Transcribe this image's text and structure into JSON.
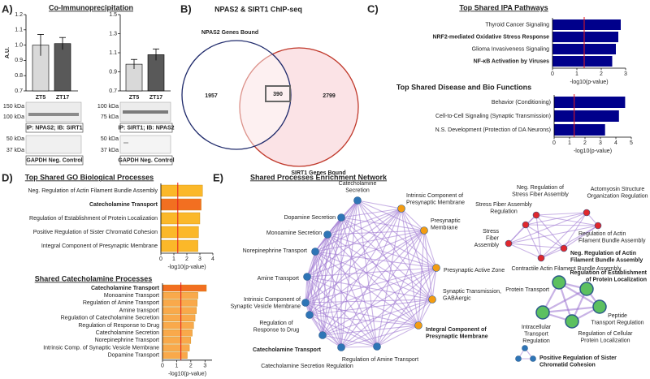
{
  "chart_data": [
    {
      "type": "bar",
      "ylabel": "A.U.",
      "categories": [
        "ZT5",
        "ZT17"
      ],
      "values": [
        1.0,
        1.01
      ],
      "errors": [
        0.07,
        0.04
      ],
      "colors": [
        "#d9d9d9",
        "#595959"
      ],
      "ylim": [
        0.7,
        1.2
      ],
      "yticks": [
        0.7,
        0.8,
        0.9,
        {
          "value": 1,
          "label": "1.0"
        },
        1.1,
        1.2
      ]
    },
    {
      "type": "bar",
      "categories": [
        "ZT5",
        "ZT17"
      ],
      "values": [
        0.98,
        1.08
      ],
      "errors": [
        0.05,
        0.06
      ],
      "colors": [
        "#d9d9d9",
        "#595959"
      ],
      "ylim": [
        0.7,
        1.5
      ],
      "yticks": [
        0.7,
        0.9,
        1.1,
        1.3,
        1.5
      ]
    },
    {
      "type": "barh",
      "title": "Top Shared IPA Pathways",
      "xlabel": "-log10(p-value)",
      "categories": [
        "Thyroid Cancer Signaling",
        "NRF2-mediated Oxidative Stress Response",
        "Glioma Invasiveness Signaling",
        "NF-κB Activation by Viruses"
      ],
      "bold": [
        1,
        3
      ],
      "values": [
        2.8,
        2.7,
        2.6,
        2.45
      ],
      "color": "#00008b",
      "xlim": [
        0,
        3
      ],
      "xticks": [
        0,
        1,
        2,
        3
      ],
      "threshold": 1.3,
      "threshold_color": "#e41a1c"
    },
    {
      "type": "barh",
      "title": "Top Shared Disease and Bio Functions",
      "xlabel": "-log10(p-value)",
      "categories": [
        "Behavior (Conditioning)",
        "Cell-to-Cell Signaling (Synaptic Transmission)",
        "N.S. Development (Protection of DA Neurons)"
      ],
      "bold": [],
      "values": [
        4.6,
        4.2,
        3.3
      ],
      "color": "#00008b",
      "xlim": [
        0,
        5
      ],
      "xticks": [
        0,
        1,
        2,
        3,
        4,
        5
      ],
      "threshold": 1.3,
      "threshold_color": "#e41a1c"
    },
    {
      "type": "barh",
      "title": "Top Shared GO Biological Processes",
      "xlabel": "-log10(p-value)",
      "categories": [
        "Neg. Regulation of Actin Filament Bundle Assembly",
        "Catecholamine Transport",
        "Regulation of Establishment of Protein Localization",
        "Positive Regulation of Sister Chromatid Cohesion",
        "Integral Component of Presynaptic Membrane"
      ],
      "bold": [
        1
      ],
      "values": [
        3.2,
        3.1,
        3.0,
        2.9,
        2.85
      ],
      "bar_colors": [
        "#fbb829",
        "#f26f21",
        "#fbb829",
        "#fbb829",
        "#fbb829"
      ],
      "xlim": [
        0,
        4
      ],
      "xticks": [
        0,
        1,
        2,
        3,
        4
      ],
      "threshold": 1.3,
      "threshold_color": "#e41a1c"
    },
    {
      "type": "barh",
      "title": "Shared Catecholamine Processes",
      "xlabel": "-log10(p-value)",
      "categories": [
        "Catecholamine Transport",
        "Monoamine Transport",
        "Regulation of Amine Transport",
        "Amine transport",
        "Regulation of Catecholamine Secretion",
        "Regulation of Response to Drug",
        "Catecholamine Secretion",
        "Norepinephrine Transport",
        "Intrinsic Comp. of Synaptic Vesicle Membrane",
        "Dopamine Transport"
      ],
      "bold": [
        0
      ],
      "values": [
        3.1,
        2.5,
        2.45,
        2.4,
        2.3,
        2.2,
        2.1,
        2.0,
        1.9,
        1.75
      ],
      "bar_colors": [
        "#f26f21",
        "#f9a94b",
        "#f9a94b",
        "#f9a94b",
        "#f9a94b",
        "#f9a94b",
        "#f9a94b",
        "#f9a94b",
        "#f9a94b",
        "#f9a94b"
      ],
      "xlim": [
        0,
        3.5
      ],
      "xticks": [
        0,
        1,
        2,
        3
      ],
      "threshold": 1.3,
      "threshold_color": "#e41a1c"
    }
  ],
  "panel_a": {
    "label": "A)",
    "title": "Co-Immunoprecipitation",
    "blots": [
      {
        "markers": [
          "150 kDa",
          "100 kDa"
        ],
        "caption": "IP: NPAS2; IB: SIRT1",
        "control_markers": [
          "50 kDa",
          "37 kDa"
        ],
        "control_caption": "GAPDH Neg. Control"
      },
      {
        "markers": [
          "100 kDa",
          "75 kDa"
        ],
        "caption": "IP: SIRT1; IB: NPAS2",
        "control_markers": [
          "50 kDa",
          "37 kDa"
        ],
        "control_caption": "GAPDH Neg. Control"
      }
    ]
  },
  "venn": {
    "label": "B)",
    "title": "NPAS2 & SIRT1 ChIP-seq",
    "sets": [
      {
        "name": "NPAS2 Genes Bound",
        "color": "#1f2a6b"
      },
      {
        "name": "SIRT1 Genes Bound",
        "color": "#c0392b"
      }
    ],
    "counts": [
      1957,
      390,
      2799
    ]
  },
  "panel_labels": {
    "c": "C)",
    "d": "D)"
  },
  "network": {
    "label": "E)",
    "title": "Shared Processes Enrichment Network",
    "edge_color": "#9b72cf",
    "clusters": [
      {
        "nodes": [
          {
            "lines": [
              "Catecholamine",
              "Secretion"
            ],
            "color": "#2e75b6"
          },
          {
            "lines": [
              "Intrinsic Component of",
              "Presynaptic Membrane"
            ],
            "color": "#f39c12"
          },
          {
            "lines": [
              "Presynaptic",
              "Membrane"
            ],
            "color": "#f39c12"
          },
          {
            "lines": [
              "Presynaptic Active Zone"
            ],
            "color": "#f39c12"
          },
          {
            "lines": [
              "Synaptic Transmission,",
              "GABAergic"
            ],
            "color": "#f39c12"
          },
          {
            "lines": [
              "Integral Component of",
              "Presynaptic Membrane"
            ],
            "color": "#f39c12",
            "bold": true
          },
          {
            "lines": [
              "Regulation of Amine Transport"
            ],
            "color": "#2e75b6"
          },
          {
            "lines": [
              "Catecholamine Secretion Regulation"
            ],
            "color": "#2e75b6"
          },
          {
            "lines": [
              "Catecholamine Transport"
            ],
            "color": "#2e75b6",
            "bold": true
          },
          {
            "lines": [
              "Regulation of",
              "Response to Drug"
            ],
            "color": "#2e75b6"
          },
          {
            "lines": [
              "Intrinsic Component of",
              "Synaptic Vesicle Membrane"
            ],
            "color": "#2e75b6"
          },
          {
            "lines": [
              "Amine Transport"
            ],
            "color": "#2e75b6"
          },
          {
            "lines": [
              "Norepinephrine Transport"
            ],
            "color": "#2e75b6"
          },
          {
            "lines": [
              "Monoamine Secretion"
            ],
            "color": "#2e75b6"
          },
          {
            "lines": [
              "Dopamine Secretion"
            ],
            "color": "#2e75b6"
          }
        ]
      },
      {
        "nodes": [
          {
            "lines": [
              "Neg. Regulation of",
              "Stress Fiber Assembly"
            ],
            "color": "#e0282e"
          },
          {
            "lines": [
              "Actomyosin Structure",
              "Organization Regulation"
            ],
            "color": "#e0282e"
          },
          {
            "lines": [
              "Stress Fiber Assembly",
              "Regulation"
            ],
            "color": "#e0282e"
          },
          {
            "lines": [
              "Regulation of Actin",
              "Filament Bundle Assembly"
            ],
            "color": "#e0282e"
          },
          {
            "lines": [
              "Stress",
              "Fiber",
              "Assembly"
            ],
            "color": "#e0282e"
          },
          {
            "lines": [
              "Neg. Regulation of Actin",
              "Filament Bundle Assembly"
            ],
            "color": "#e0282e",
            "bold": true
          },
          {
            "lines": [
              "Contractile Actin Filament Bundle Assembly"
            ],
            "color": "#e0282e"
          }
        ]
      },
      {
        "nodes": [
          {
            "lines": [
              "Protein Transport"
            ],
            "color": "#5cc060"
          },
          {
            "lines": [
              "Regulation of Establishment",
              "of Protein Localization"
            ],
            "color": "#5cc060",
            "bold": true
          },
          {
            "lines": [
              "Peptide",
              "Transport Regulation"
            ],
            "color": "#5cc060"
          },
          {
            "lines": [
              "Regulation of Cellular",
              "Protein Localization"
            ],
            "color": "#5cc060"
          },
          {
            "lines": [
              "Intracellular",
              "Transport",
              "Regulation"
            ],
            "color": "#5cc060"
          }
        ]
      },
      {
        "nodes": [
          {
            "lines": [
              "Positive Regulation of Sister",
              "Chromatid Cohesion"
            ],
            "color": "#2e75b6",
            "bold": true
          },
          {
            "lines": null,
            "color": "#2e75b6"
          },
          {
            "lines": null,
            "color": "#2e75b6"
          }
        ]
      }
    ]
  }
}
